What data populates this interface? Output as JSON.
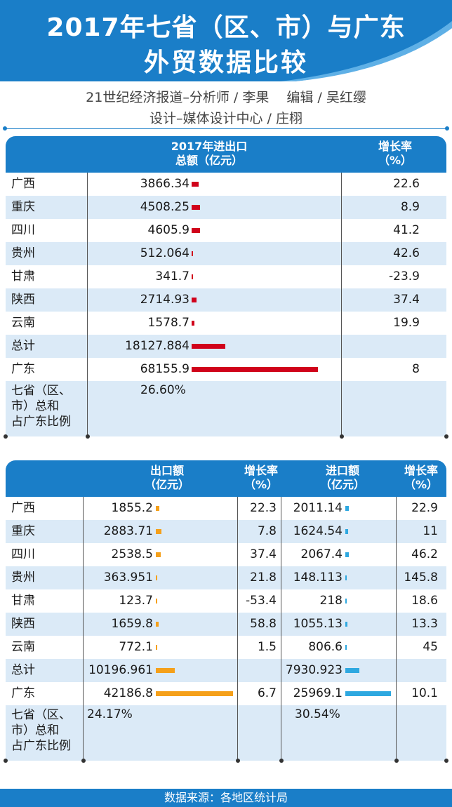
{
  "title_line1": "2017年七省（区、市）与广东",
  "title_line2": "外贸数据比较",
  "credit_line1": "21世纪经济报道–分析师 / 李果　 编辑 / 吴红缨",
  "credit_line2": "设计–媒体设计中心 / 庄栩",
  "footer": "数据来源：各地区统计局",
  "colors": {
    "header": "#1a7ec8",
    "stripe": "#dbeaf7",
    "total_bar": "#d0021b",
    "export_bar": "#f5a01a",
    "import_bar": "#2ea8e0"
  },
  "chart_data": [
    {
      "type": "table",
      "headers": {
        "total": "2017年进出口\n总额（亿元）",
        "growth": "增长率\n（%）"
      },
      "rows": [
        {
          "name": "广西",
          "total": "3866.34",
          "growth": "22.6"
        },
        {
          "name": "重庆",
          "total": "4508.25",
          "growth": "8.9"
        },
        {
          "name": "四川",
          "total": "4605.9",
          "growth": "41.2"
        },
        {
          "name": "贵州",
          "total": "512.064",
          "growth": "42.6"
        },
        {
          "name": "甘肃",
          "total": "341.7",
          "growth": "-23.9"
        },
        {
          "name": "陕西",
          "total": "2714.93",
          "growth": "37.4"
        },
        {
          "name": "云南",
          "total": "1578.7",
          "growth": "19.9"
        },
        {
          "name": "总计",
          "total": "18127.884",
          "growth": ""
        },
        {
          "name": "广东",
          "total": "68155.9",
          "growth": "8"
        }
      ],
      "share_label": "七省（区、\n市）总和\n占广东比例",
      "share_total": "26.60%"
    },
    {
      "type": "table",
      "headers": {
        "export": "出口额\n（亿元）",
        "export_growth": "增长率\n（%）",
        "import": "进口额\n（亿元）",
        "import_growth": "增长率\n（%）"
      },
      "rows": [
        {
          "name": "广西",
          "export": "1855.2",
          "export_growth": "22.3",
          "import": "2011.14",
          "import_growth": "22.9"
        },
        {
          "name": "重庆",
          "export": "2883.71",
          "export_growth": "7.8",
          "import": "1624.54",
          "import_growth": "11"
        },
        {
          "name": "四川",
          "export": "2538.5",
          "export_growth": "37.4",
          "import": "2067.4",
          "import_growth": "46.2"
        },
        {
          "name": "贵州",
          "export": "363.951",
          "export_growth": "21.8",
          "import": "148.113",
          "import_growth": "145.8"
        },
        {
          "name": "甘肃",
          "export": "123.7",
          "export_growth": "-53.4",
          "import": "218",
          "import_growth": "18.6"
        },
        {
          "name": "陕西",
          "export": "1659.8",
          "export_growth": "58.8",
          "import": "1055.13",
          "import_growth": "13.3"
        },
        {
          "name": "云南",
          "export": "772.1",
          "export_growth": "1.5",
          "import": "806.6",
          "import_growth": "45"
        },
        {
          "name": "总计",
          "export": "10196.961",
          "export_growth": "",
          "import": "7930.923",
          "import_growth": ""
        },
        {
          "name": "广东",
          "export": "42186.8",
          "export_growth": "6.7",
          "import": "25969.1",
          "import_growth": "10.1"
        }
      ],
      "share_label": "七省（区、\n市）总和\n占广东比例",
      "share_export": "24.17%",
      "share_import": "30.54%"
    }
  ]
}
